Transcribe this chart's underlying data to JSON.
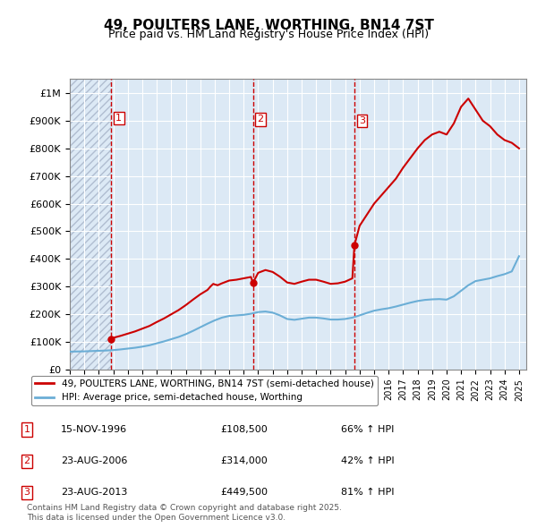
{
  "title": "49, POULTERS LANE, WORTHING, BN14 7ST",
  "subtitle": "Price paid vs. HM Land Registry's House Price Index (HPI)",
  "ylabel_values": [
    "£0",
    "£100K",
    "£200K",
    "£300K",
    "£400K",
    "£500K",
    "£600K",
    "£700K",
    "£800K",
    "£900K",
    "£1M"
  ],
  "ylim": [
    0,
    1050000
  ],
  "yticks": [
    0,
    100000,
    200000,
    300000,
    400000,
    500000,
    600000,
    700000,
    800000,
    900000,
    1000000
  ],
  "xlim_start": 1994.0,
  "xlim_end": 2025.5,
  "sale_dates": [
    1996.87,
    2006.64,
    2013.64
  ],
  "sale_prices": [
    108500,
    314000,
    449500
  ],
  "sale_labels": [
    "1",
    "2",
    "3"
  ],
  "hpi_line_color": "#6baed6",
  "price_line_color": "#cc0000",
  "vline_color": "#cc0000",
  "background_color": "#dce9f5",
  "hatch_color": "#c0c8d8",
  "legend_line1": "49, POULTERS LANE, WORTHING, BN14 7ST (semi-detached house)",
  "legend_line2": "HPI: Average price, semi-detached house, Worthing",
  "table_entries": [
    {
      "num": "1",
      "date": "15-NOV-1996",
      "price": "£108,500",
      "hpi": "66% ↑ HPI"
    },
    {
      "num": "2",
      "date": "23-AUG-2006",
      "price": "£314,000",
      "hpi": "42% ↑ HPI"
    },
    {
      "num": "3",
      "date": "23-AUG-2013",
      "price": "£449,500",
      "hpi": "81% ↑ HPI"
    }
  ],
  "footer": "Contains HM Land Registry data © Crown copyright and database right 2025.\nThis data is licensed under the Open Government Licence v3.0.",
  "hpi_x": [
    1994,
    1994.5,
    1995,
    1995.5,
    1996,
    1996.5,
    1997,
    1997.5,
    1998,
    1998.5,
    1999,
    1999.5,
    2000,
    2000.5,
    2001,
    2001.5,
    2002,
    2002.5,
    2003,
    2003.5,
    2004,
    2004.5,
    2005,
    2005.5,
    2006,
    2006.5,
    2007,
    2007.5,
    2008,
    2008.5,
    2009,
    2009.5,
    2010,
    2010.5,
    2011,
    2011.5,
    2012,
    2012.5,
    2013,
    2013.5,
    2014,
    2014.5,
    2015,
    2015.5,
    2016,
    2016.5,
    2017,
    2017.5,
    2018,
    2018.5,
    2019,
    2019.5,
    2020,
    2020.5,
    2021,
    2021.5,
    2022,
    2022.5,
    2023,
    2023.5,
    2024,
    2024.5,
    2025
  ],
  "hpi_y": [
    65000,
    65500,
    66000,
    67000,
    68000,
    69000,
    70500,
    73000,
    76000,
    79000,
    83000,
    88000,
    95000,
    102000,
    110000,
    118000,
    128000,
    140000,
    153000,
    166000,
    178000,
    188000,
    194000,
    196000,
    198000,
    202000,
    208000,
    210000,
    206000,
    196000,
    183000,
    180000,
    184000,
    188000,
    188000,
    185000,
    181000,
    181000,
    183000,
    188000,
    196000,
    205000,
    213000,
    218000,
    222000,
    228000,
    235000,
    242000,
    248000,
    252000,
    254000,
    255000,
    253000,
    265000,
    285000,
    305000,
    320000,
    325000,
    330000,
    338000,
    345000,
    355000,
    410000
  ],
  "price_x": [
    1994,
    1994.5,
    1995,
    1995.5,
    1996,
    1996.5,
    1996.87,
    1997,
    1997.5,
    1998,
    1998.5,
    1999,
    1999.5,
    2000,
    2000.5,
    2001,
    2001.5,
    2002,
    2002.5,
    2003,
    2003.5,
    2003.7,
    2003.9,
    2004,
    2004.2,
    2004.5,
    2004.8,
    2005,
    2005.5,
    2006,
    2006.5,
    2006.64,
    2007,
    2007.5,
    2008,
    2008.5,
    2009,
    2009.5,
    2010,
    2010.5,
    2011,
    2011.5,
    2012,
    2012.5,
    2013,
    2013.5,
    2013.64,
    2014,
    2014.5,
    2015,
    2015.5,
    2016,
    2016.5,
    2017,
    2017.5,
    2018,
    2018.5,
    2019,
    2019.5,
    2020,
    2020.5,
    2021,
    2021.5,
    2022,
    2022.5,
    2023,
    2023.5,
    2024,
    2024.5,
    2025
  ],
  "price_y": [
    null,
    null,
    null,
    null,
    null,
    null,
    108500,
    115000,
    122000,
    130000,
    138000,
    148000,
    158000,
    172000,
    185000,
    200000,
    215000,
    233000,
    253000,
    272000,
    288000,
    300000,
    310000,
    308000,
    305000,
    312000,
    318000,
    322000,
    325000,
    330000,
    335000,
    314000,
    350000,
    360000,
    353000,
    336000,
    315000,
    310000,
    318000,
    325000,
    325000,
    318000,
    310000,
    312000,
    318000,
    330000,
    449500,
    520000,
    560000,
    600000,
    630000,
    660000,
    690000,
    730000,
    765000,
    800000,
    830000,
    850000,
    860000,
    850000,
    890000,
    950000,
    980000,
    940000,
    900000,
    880000,
    850000,
    830000,
    820000,
    800000
  ]
}
